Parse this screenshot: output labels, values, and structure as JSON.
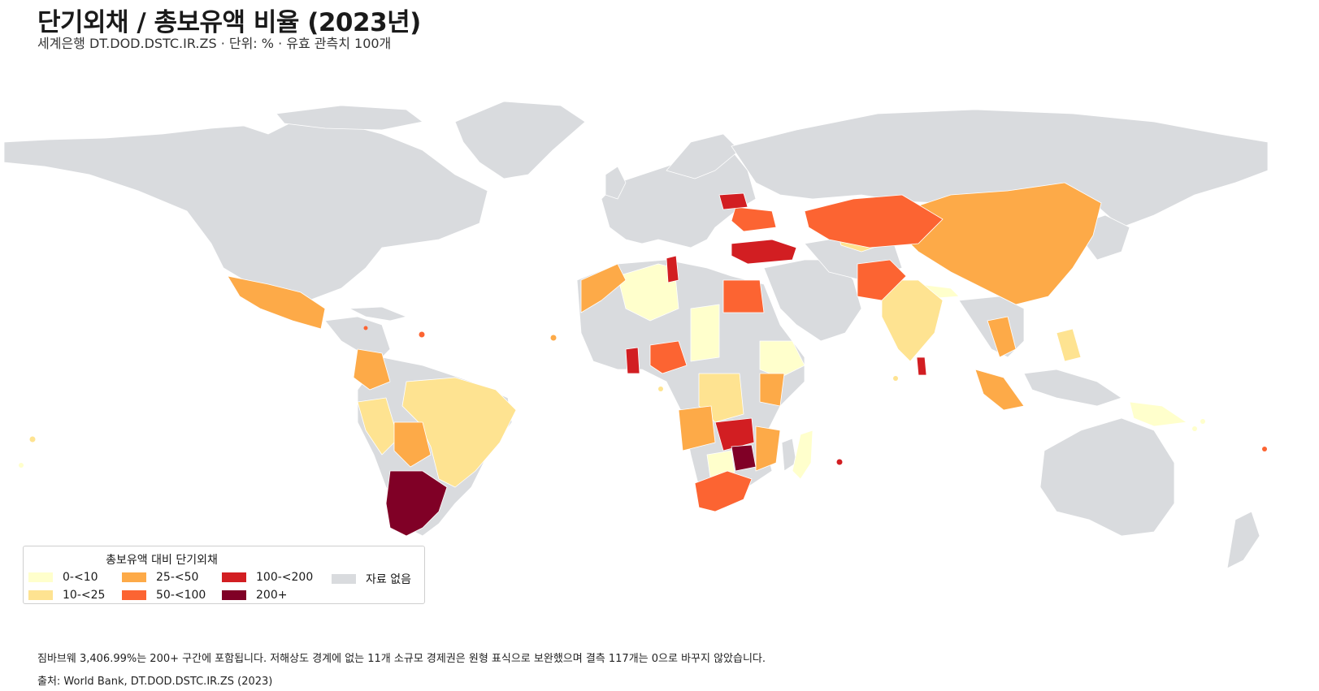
{
  "title": "단기외채 / 총보유액 비율 (2023년)",
  "subtitle": "세계은행 DT.DOD.DSTC.IR.ZS · 단위: % · 유효 관측치 100개",
  "legend": {
    "title": "총보유액 대비 단기외채",
    "items": [
      {
        "label": "0-<10",
        "color": "#ffffcc"
      },
      {
        "label": "10-<25",
        "color": "#fee391"
      },
      {
        "label": "25-<50",
        "color": "#fdaa48"
      },
      {
        "label": "50-<100",
        "color": "#fc6432"
      },
      {
        "label": "100-<200",
        "color": "#d21e22"
      },
      {
        "label": "200+",
        "color": "#800026"
      },
      {
        "label": "자료 없음",
        "color": "#d9dbde"
      }
    ]
  },
  "note": "짐바브웨 3,406.99%는 200+ 구간에 포함됩니다. 저해상도 경계에 없는 11개 소규모 경제권은 원형 표식으로 보완했으며 결측 117개는 0으로 바꾸지 않았습니다.",
  "source": "출처: World Bank, DT.DOD.DSTC.IR.ZS (2023)"
}
